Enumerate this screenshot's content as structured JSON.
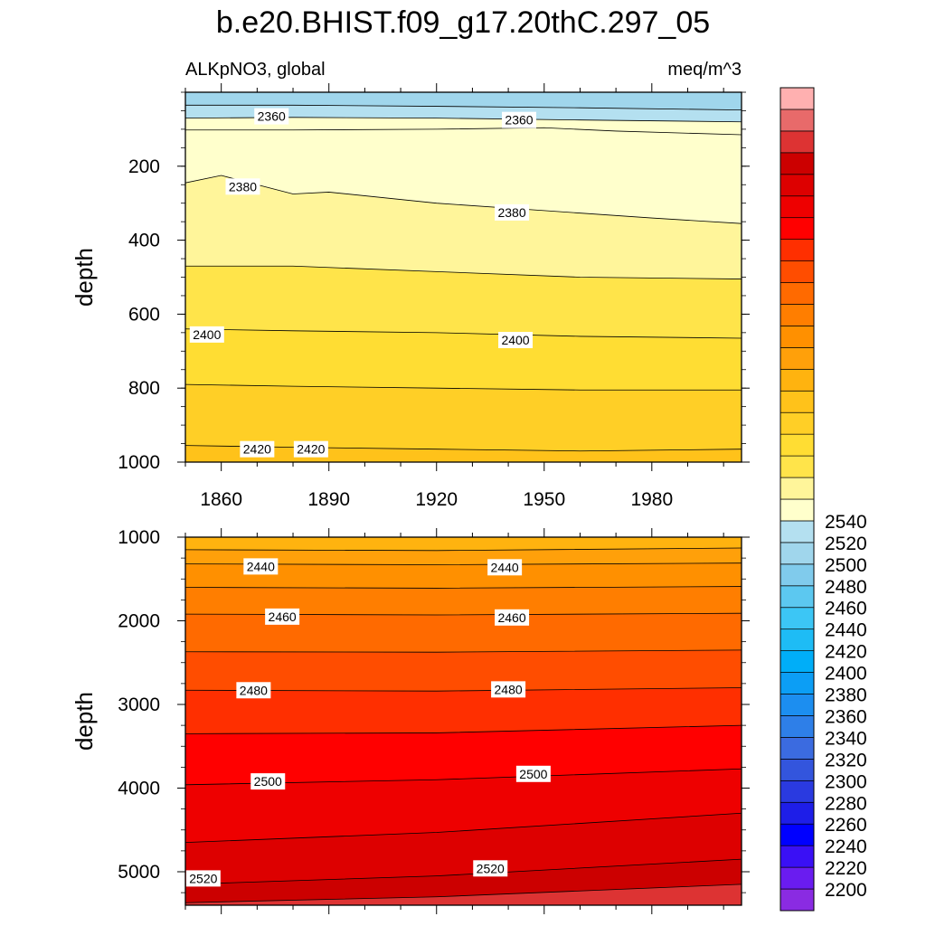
{
  "title": "b.e20.BHIST.f09_g17.20thC.297_05",
  "left_string": "ALKpNO3, global",
  "right_string": "meq/m^3",
  "chart_data": [
    {
      "type": "contour",
      "panel": "upper",
      "ylabel": "depth",
      "ylim": [
        1000,
        0
      ],
      "xlim": [
        1850,
        2005
      ],
      "x_tick_labels": [
        "1860",
        "1890",
        "1920",
        "1950",
        "1980"
      ],
      "y_tick_labels": [
        "200",
        "400",
        "600",
        "800",
        "1000"
      ],
      "contour_lines": [
        {
          "level": 2340,
          "x": [
            1850,
            1880,
            1920,
            1960,
            2005
          ],
          "depth": [
            35,
            35,
            38,
            42,
            48
          ]
        },
        {
          "level": 2360,
          "x": [
            1850,
            1880,
            1920,
            1960,
            2005
          ],
          "depth": [
            70,
            68,
            70,
            75,
            80
          ]
        },
        {
          "level": 2370,
          "x": [
            1850,
            1880,
            1920,
            1950,
            1970,
            2005
          ],
          "depth": [
            102,
            102,
            100,
            96,
            105,
            115
          ]
        },
        {
          "level": 2380,
          "x": [
            1850,
            1860,
            1870,
            1880,
            1890,
            1920,
            1950,
            1980,
            2005
          ],
          "depth": [
            245,
            225,
            250,
            275,
            270,
            300,
            320,
            340,
            355
          ]
        },
        {
          "level": 2390,
          "x": [
            1850,
            1880,
            1920,
            1960,
            2005
          ],
          "depth": [
            470,
            470,
            485,
            500,
            505
          ]
        },
        {
          "level": 2400,
          "x": [
            1850,
            1880,
            1920,
            1960,
            2005
          ],
          "depth": [
            640,
            645,
            650,
            660,
            665
          ]
        },
        {
          "level": 2410,
          "x": [
            1850,
            1880,
            1920,
            1960,
            2005
          ],
          "depth": [
            790,
            795,
            800,
            805,
            805
          ]
        },
        {
          "level": 2420,
          "x": [
            1850,
            1880,
            1920,
            1960,
            2005
          ],
          "depth": [
            955,
            960,
            965,
            970,
            965
          ]
        }
      ],
      "contour_labels": [
        {
          "text": "2360",
          "x": 1874,
          "depth": 65
        },
        {
          "text": "2360",
          "x": 1943,
          "depth": 75
        },
        {
          "text": "2380",
          "x": 1866,
          "depth": 255
        },
        {
          "text": "2380",
          "x": 1941,
          "depth": 325
        },
        {
          "text": "2400",
          "x": 1856,
          "depth": 655
        },
        {
          "text": "2400",
          "x": 1942,
          "depth": 670
        },
        {
          "text": "2420",
          "x": 1870,
          "depth": 965
        },
        {
          "text": "2420",
          "x": 1885,
          "depth": 965
        }
      ],
      "fills": [
        {
          "from": 0,
          "color": "#a0d6ec"
        },
        {
          "from": 2340,
          "color": "#b4e0f0"
        },
        {
          "from": 2360,
          "color": "#ffffcc"
        },
        {
          "from": 2380,
          "color": "#fff59a"
        },
        {
          "from": 2390,
          "color": "#ffe44a"
        },
        {
          "from": 2400,
          "color": "#ffdd33"
        },
        {
          "from": 2410,
          "color": "#ffcf26"
        },
        {
          "from": 2420,
          "color": "#ffc21a"
        }
      ]
    },
    {
      "type": "contour",
      "panel": "lower",
      "ylabel": "depth",
      "ylim": [
        5400,
        1000
      ],
      "xlim": [
        1850,
        2005
      ],
      "y_tick_labels": [
        "1000",
        "2000",
        "3000",
        "4000",
        "5000"
      ],
      "contour_lines": [
        {
          "level": 2430,
          "x": [
            1850,
            1920,
            2005
          ],
          "depth": [
            1150,
            1160,
            1130
          ]
        },
        {
          "level": 2440,
          "x": [
            1850,
            1920,
            2005
          ],
          "depth": [
            1320,
            1330,
            1310
          ]
        },
        {
          "level": 2450,
          "x": [
            1850,
            1920,
            2005
          ],
          "depth": [
            1600,
            1610,
            1590
          ]
        },
        {
          "level": 2460,
          "x": [
            1850,
            1920,
            2005
          ],
          "depth": [
            1920,
            1930,
            1910
          ]
        },
        {
          "level": 2470,
          "x": [
            1850,
            1920,
            2005
          ],
          "depth": [
            2370,
            2375,
            2350
          ]
        },
        {
          "level": 2480,
          "x": [
            1850,
            1920,
            2005
          ],
          "depth": [
            2830,
            2840,
            2800
          ]
        },
        {
          "level": 2490,
          "x": [
            1850,
            1920,
            2005
          ],
          "depth": [
            3350,
            3340,
            3250
          ]
        },
        {
          "level": 2500,
          "x": [
            1850,
            1920,
            2005
          ],
          "depth": [
            3960,
            3900,
            3770
          ]
        },
        {
          "level": 2510,
          "x": [
            1850,
            1920,
            2005
          ],
          "depth": [
            4650,
            4530,
            4300
          ]
        },
        {
          "level": 2520,
          "x": [
            1850,
            1920,
            2005
          ],
          "depth": [
            5150,
            5050,
            4850
          ]
        },
        {
          "level": 2530,
          "x": [
            1850,
            1920,
            2005
          ],
          "depth": [
            5370,
            5300,
            5150
          ]
        }
      ],
      "contour_labels": [
        {
          "text": "2440",
          "x": 1871,
          "depth": 1350
        },
        {
          "text": "2440",
          "x": 1939,
          "depth": 1360
        },
        {
          "text": "2460",
          "x": 1877,
          "depth": 1950
        },
        {
          "text": "2460",
          "x": 1941,
          "depth": 1960
        },
        {
          "text": "2480",
          "x": 1869,
          "depth": 2830
        },
        {
          "text": "2480",
          "x": 1940,
          "depth": 2820
        },
        {
          "text": "2500",
          "x": 1873,
          "depth": 3920
        },
        {
          "text": "2500",
          "x": 1947,
          "depth": 3830
        },
        {
          "text": "2520",
          "x": 1855,
          "depth": 5080
        },
        {
          "text": "2520",
          "x": 1935,
          "depth": 4960
        }
      ],
      "fills": [
        {
          "from": 2420,
          "color": "#ffb30f"
        },
        {
          "from": 2430,
          "color": "#ffa00a"
        },
        {
          "from": 2440,
          "color": "#ff9000"
        },
        {
          "from": 2450,
          "color": "#ff7e00"
        },
        {
          "from": 2460,
          "color": "#ff6a00"
        },
        {
          "from": 2470,
          "color": "#ff4d00"
        },
        {
          "from": 2480,
          "color": "#ff2f00"
        },
        {
          "from": 2490,
          "color": "#ff0000"
        },
        {
          "from": 2500,
          "color": "#ee0000"
        },
        {
          "from": 2510,
          "color": "#dd0000"
        },
        {
          "from": 2520,
          "color": "#cc0000"
        },
        {
          "from": 2530,
          "color": "#dd3333"
        }
      ]
    }
  ],
  "colorbar": {
    "tick_labels": [
      "2200",
      "2220",
      "2240",
      "2260",
      "2280",
      "2300",
      "2320",
      "2340",
      "2360",
      "2380",
      "2400",
      "2420",
      "2440",
      "2460",
      "2480",
      "2500",
      "2520",
      "2540"
    ],
    "colors": [
      "#8a2be2",
      "#6a1cf0",
      "#3a10f5",
      "#0000ff",
      "#1e1ee8",
      "#2a3ae0",
      "#3355dd",
      "#3b6be0",
      "#2e7fe8",
      "#1c8ef0",
      "#0c9ef5",
      "#00aef8",
      "#1ebcf5",
      "#3cc6f5",
      "#5cc8f0",
      "#80cbec",
      "#a0d6ec",
      "#b4e0f0",
      "#ffffcc",
      "#fff59a",
      "#ffe44a",
      "#ffdd33",
      "#ffcf26",
      "#ffc21a",
      "#ffb30f",
      "#ffa00a",
      "#ff9000",
      "#ff7e00",
      "#ff6a00",
      "#ff4d00",
      "#ff2f00",
      "#ff0000",
      "#ee0000",
      "#dd0000",
      "#cc0000",
      "#dd3333",
      "#e86a6a",
      "#ffb0b0"
    ]
  }
}
